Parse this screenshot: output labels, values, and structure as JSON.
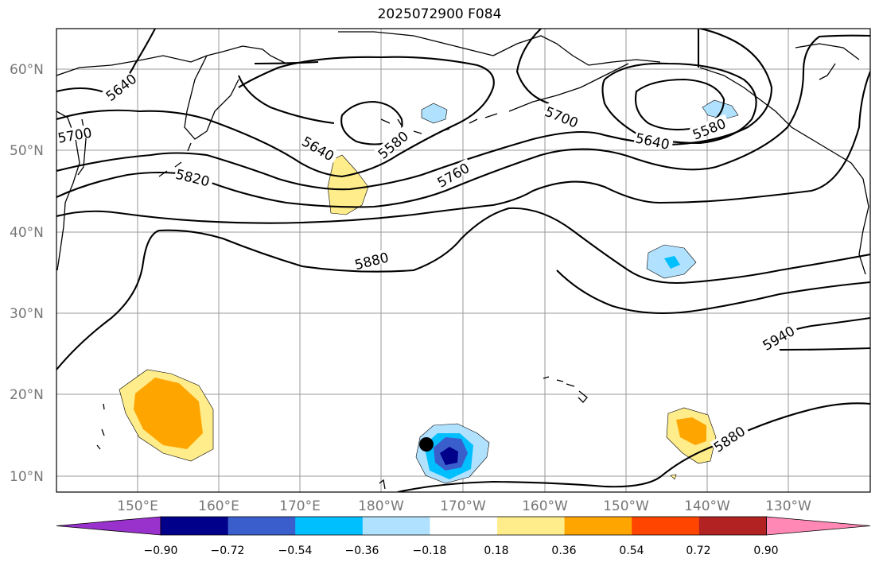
{
  "title": "2025072900 F084",
  "latitude_ticks": [
    "60°N",
    "50°N",
    "40°N",
    "30°N",
    "20°N",
    "10°N"
  ],
  "longitude_ticks": [
    "150°E",
    "160°E",
    "170°E",
    "180°W",
    "170°W",
    "160°W",
    "150°W",
    "140°W",
    "130°W"
  ],
  "contour_labels": [
    {
      "id": "5640-w",
      "text": "5640"
    },
    {
      "id": "5700-w",
      "text": "5700"
    },
    {
      "id": "5820",
      "text": "5820"
    },
    {
      "id": "5640-c",
      "text": "5640"
    },
    {
      "id": "5580-c",
      "text": "5580"
    },
    {
      "id": "5760",
      "text": "5760"
    },
    {
      "id": "5880-c",
      "text": "5880"
    },
    {
      "id": "5700-e",
      "text": "5700"
    },
    {
      "id": "5640-e",
      "text": "5640"
    },
    {
      "id": "5580-e",
      "text": "5580"
    },
    {
      "id": "5940",
      "text": "5940"
    },
    {
      "id": "5880-se",
      "text": "5880"
    }
  ],
  "colorbar": {
    "ticks": [
      "−0.90",
      "−0.72",
      "−0.54",
      "−0.36",
      "−0.18",
      "0.18",
      "0.36",
      "0.54",
      "0.72",
      "0.90"
    ],
    "colors": [
      "#9932CC",
      "#00008B",
      "#3A5FCD",
      "#00BFFF",
      "#B0E2FF",
      "#FFFFFF",
      "#FFEC8B",
      "#FFA500",
      "#FF4500",
      "#B22222",
      "#FF88B4"
    ]
  }
}
